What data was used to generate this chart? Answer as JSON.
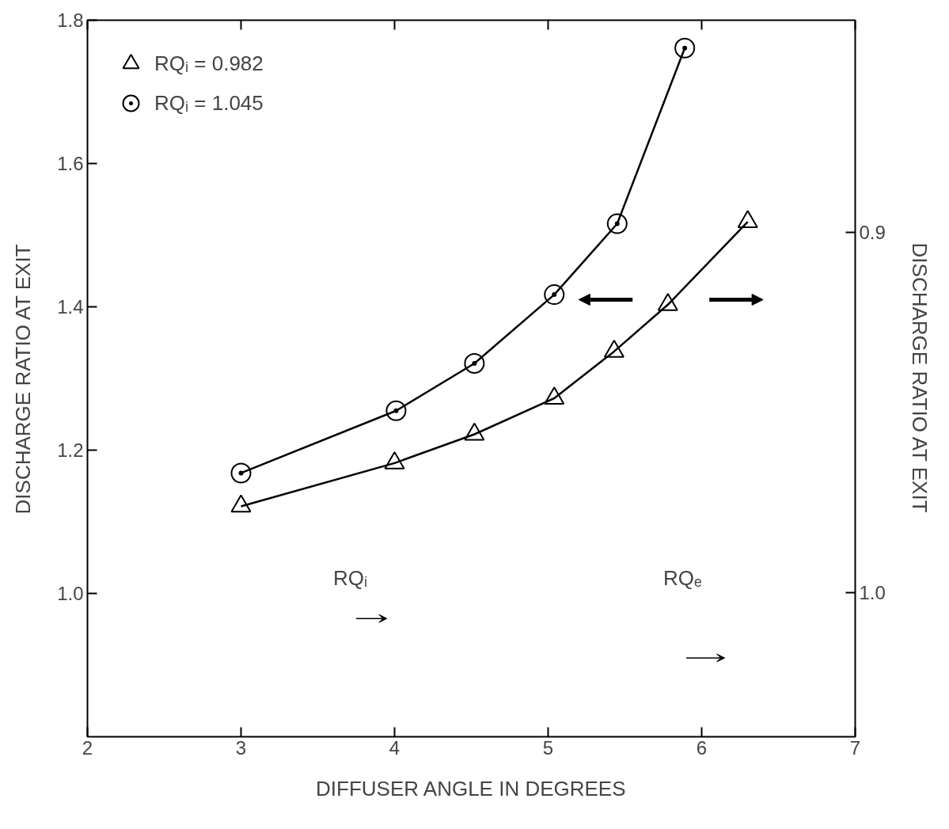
{
  "chart_data": {
    "type": "line",
    "xlabel": "DIFFUSER ANGLE IN DEGREES",
    "ylabel": "DISCHARGE RATIO AT EXIT",
    "y2label": "DISCHARGE RATIO AT EXIT",
    "xlim": [
      2,
      7
    ],
    "xticks": [
      2,
      3,
      4,
      5,
      6,
      7
    ],
    "ylim": [
      0.8,
      1.8
    ],
    "yticks": [
      {
        "value": 1.0,
        "label": "1.0"
      },
      1.2,
      1.4,
      1.6,
      1.8
    ],
    "y2lim": [
      1.04,
      0.841
    ],
    "y2ticks": [
      0.9,
      {
        "value": 1.0,
        "label": "1.0"
      }
    ],
    "grid": false,
    "legend": "top left",
    "line_style": "solid",
    "annotations": [
      "RQᵢ",
      "RQₑ"
    ],
    "series": [
      {
        "name": "RQᵢ = 0.982",
        "color": "#000000",
        "marker": "triangle",
        "axis": "y2",
        "x": [
          3,
          4,
          4.52,
          5.04,
          5.43,
          5.78,
          6.3
        ],
        "values": [
          0.976,
          0.964,
          0.956,
          0.946,
          0.933,
          0.92,
          0.897
        ]
      },
      {
        "name": "RQᵢ = 1.045",
        "color": "#000000",
        "marker": "circle",
        "axis": "y",
        "x": [
          3,
          4.01,
          4.52,
          5.04,
          5.45,
          5.89
        ],
        "values": [
          1.168,
          1.255,
          1.321,
          1.417,
          1.516,
          1.761
        ]
      }
    ]
  }
}
